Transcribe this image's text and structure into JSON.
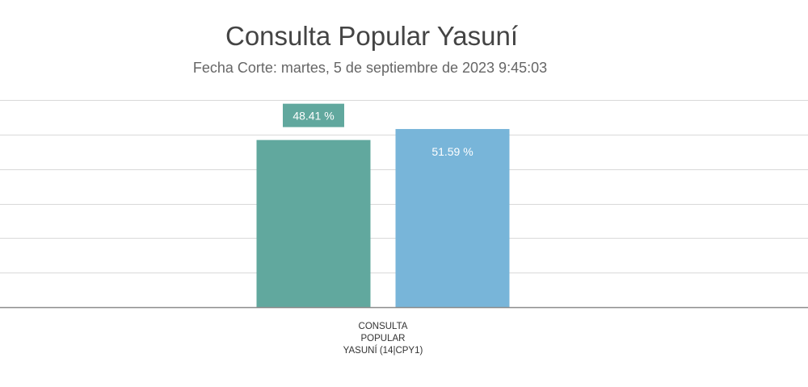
{
  "chart_data": {
    "type": "bar",
    "title": "Consulta Popular Yasuní",
    "subtitle": "Fecha Corte: martes, 5 de septiembre de 2023 9:45:03",
    "categories": [
      "CONSULTA POPULAR YASUNÍ (14|CPY1)"
    ],
    "category_label_lines": [
      "CONSULTA",
      "POPULAR",
      "YASUNÍ (14|CPY1)"
    ],
    "series": [
      {
        "values": [
          48.41
        ],
        "color": "#61a89e",
        "label": "48.41 %"
      },
      {
        "values": [
          51.59
        ],
        "color": "#78b5d9",
        "label": "51.59 %"
      }
    ],
    "ylim": [
      0,
      60
    ],
    "grid": true
  }
}
